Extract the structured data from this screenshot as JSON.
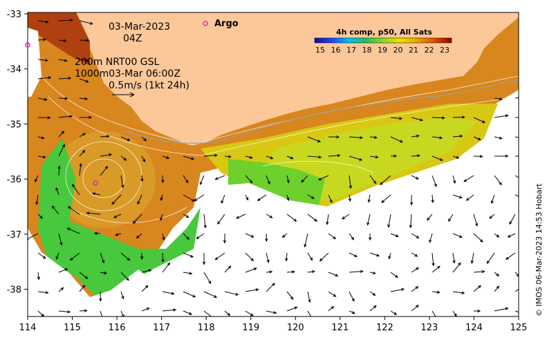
{
  "annotations": {
    "date": "03-Mar-2023",
    "time": "04Z",
    "contour_line1": "200m  NRT00 GSL",
    "contour_line2": "1000m03-Mar 06:00Z",
    "vector_scale": "0.5m/s (1kt 24h)"
  },
  "argo": {
    "label": "Argo",
    "marker_color": "#e020c0"
  },
  "colorbar": {
    "title": "4h comp, p50, All Sats",
    "ticks": [
      "15",
      "16",
      "17",
      "18",
      "19",
      "20",
      "21",
      "22",
      "23"
    ]
  },
  "axes": {
    "x_ticks": [
      "114",
      "115",
      "116",
      "117",
      "118",
      "119",
      "120",
      "121",
      "122",
      "123",
      "124",
      "125"
    ],
    "y_ticks": [
      "-33",
      "-34",
      "-35",
      "-36",
      "-37",
      "-38"
    ]
  },
  "credit": "© IMOS 06-Mar-2023 14:53 Hobart",
  "colors": {
    "land": "#fcc89a",
    "sst_warm": "#d8801c",
    "sst_mid": "#e8c800",
    "sst_cool": "#40c040",
    "frame": "#000000"
  }
}
